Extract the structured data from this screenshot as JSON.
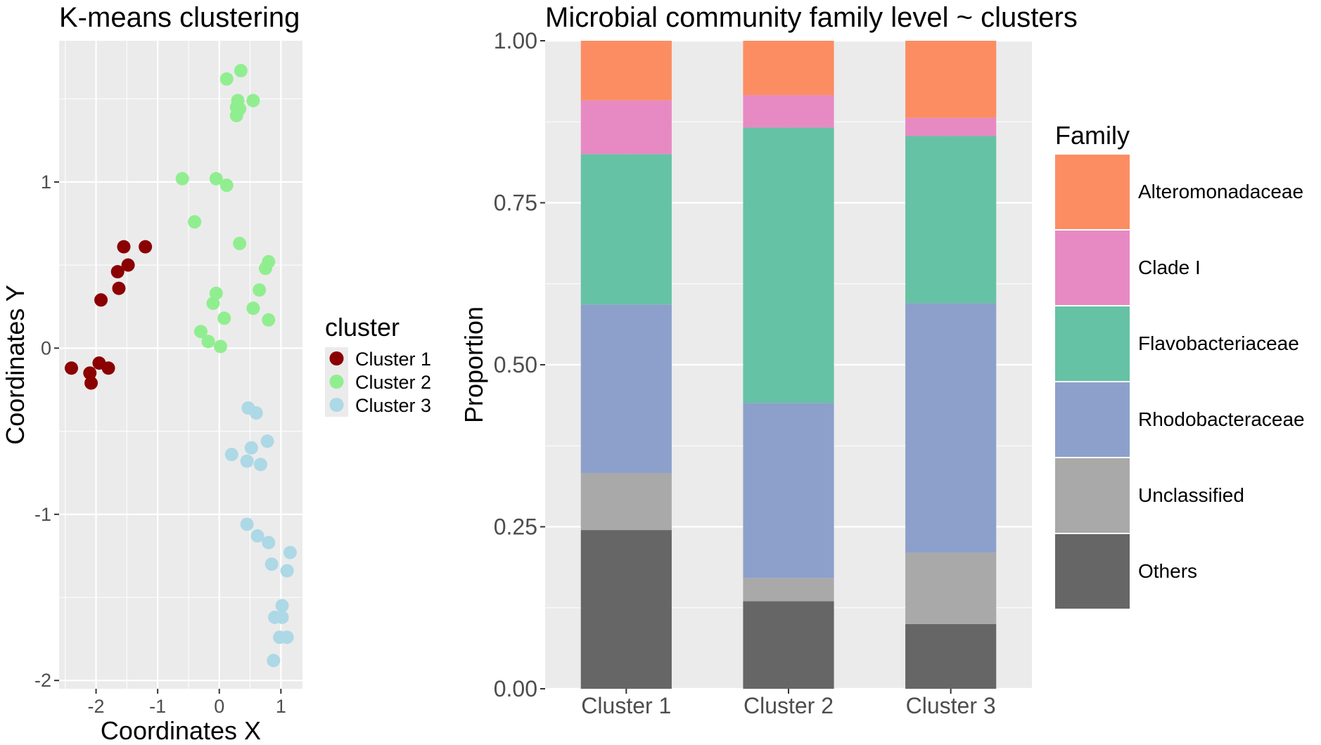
{
  "chart_data": [
    {
      "type": "scatter",
      "title": "K-means clustering",
      "xlabel": "Coordinates X",
      "ylabel": "Coordinates Y",
      "xlim": [
        -2.6,
        1.35
      ],
      "ylim": [
        -2.05,
        1.85
      ],
      "xticks": [
        -2,
        -1,
        0,
        1
      ],
      "yticks": [
        -2,
        -1,
        0,
        1
      ],
      "legend_title": "cluster",
      "legend_position": "right",
      "grid": true,
      "series": [
        {
          "name": "Cluster 1",
          "color": "#8b0000",
          "points": [
            [
              -1.55,
              0.61
            ],
            [
              -1.2,
              0.61
            ],
            [
              -1.48,
              0.5
            ],
            [
              -1.65,
              0.46
            ],
            [
              -1.63,
              0.36
            ],
            [
              -1.92,
              0.29
            ],
            [
              -2.4,
              -0.12
            ],
            [
              -1.95,
              -0.09
            ],
            [
              -1.8,
              -0.12
            ],
            [
              -2.1,
              -0.15
            ],
            [
              -2.08,
              -0.21
            ]
          ]
        },
        {
          "name": "Cluster 2",
          "color": "#90ee90",
          "points": [
            [
              0.35,
              1.67
            ],
            [
              0.12,
              1.62
            ],
            [
              0.3,
              1.49
            ],
            [
              0.55,
              1.49
            ],
            [
              0.28,
              1.45
            ],
            [
              0.33,
              1.44
            ],
            [
              0.28,
              1.4
            ],
            [
              -0.6,
              1.02
            ],
            [
              -0.05,
              1.02
            ],
            [
              0.12,
              0.98
            ],
            [
              -0.4,
              0.76
            ],
            [
              0.33,
              0.63
            ],
            [
              0.8,
              0.52
            ],
            [
              0.75,
              0.48
            ],
            [
              0.65,
              0.35
            ],
            [
              -0.05,
              0.33
            ],
            [
              -0.1,
              0.27
            ],
            [
              0.55,
              0.24
            ],
            [
              0.08,
              0.18
            ],
            [
              0.8,
              0.17
            ],
            [
              -0.3,
              0.1
            ],
            [
              -0.18,
              0.04
            ],
            [
              0.02,
              0.01
            ]
          ]
        },
        {
          "name": "Cluster 3",
          "color": "#add8e6",
          "points": [
            [
              0.47,
              -0.36
            ],
            [
              0.6,
              -0.39
            ],
            [
              0.78,
              -0.56
            ],
            [
              0.52,
              -0.6
            ],
            [
              0.2,
              -0.64
            ],
            [
              0.45,
              -0.68
            ],
            [
              0.67,
              -0.7
            ],
            [
              0.45,
              -1.06
            ],
            [
              0.62,
              -1.13
            ],
            [
              0.8,
              -1.17
            ],
            [
              1.15,
              -1.23
            ],
            [
              0.85,
              -1.3
            ],
            [
              1.1,
              -1.34
            ],
            [
              1.02,
              -1.55
            ],
            [
              0.9,
              -1.62
            ],
            [
              1.02,
              -1.62
            ],
            [
              0.98,
              -1.74
            ],
            [
              1.1,
              -1.74
            ],
            [
              0.88,
              -1.88
            ]
          ]
        }
      ]
    },
    {
      "type": "bar",
      "stacked": true,
      "title": "Microbial community family level ~ clusters",
      "xlabel": "",
      "ylabel": "Proportion",
      "ylim": [
        0,
        1
      ],
      "yticks": [
        "0.00",
        "0.25",
        "0.50",
        "0.75",
        "1.00"
      ],
      "categories": [
        "Cluster 1",
        "Cluster 2",
        "Cluster 3"
      ],
      "legend_title": "Family",
      "legend_position": "right",
      "grid": true,
      "series": [
        {
          "name": "Others",
          "color": "#666666",
          "values": [
            0.245,
            0.135,
            0.1
          ]
        },
        {
          "name": "Unclassified",
          "color": "#a9a9a9",
          "values": [
            0.088,
            0.036,
            0.11
          ]
        },
        {
          "name": "Rhodobacteraceae",
          "color": "#8da0cb",
          "values": [
            0.26,
            0.27,
            0.385
          ]
        },
        {
          "name": "Flavobacteriaceae",
          "color": "#66c2a5",
          "values": [
            0.232,
            0.425,
            0.258
          ]
        },
        {
          "name": "Clade I",
          "color": "#e78ac3",
          "values": [
            0.083,
            0.05,
            0.028
          ]
        },
        {
          "name": "Alteromonadaceae",
          "color": "#fc8d62",
          "values": [
            0.092,
            0.084,
            0.119
          ]
        }
      ],
      "legend_order": [
        "Alteromonadaceae",
        "Clade I",
        "Flavobacteriaceae",
        "Rhodobacteraceae",
        "Unclassified",
        "Others"
      ]
    }
  ]
}
